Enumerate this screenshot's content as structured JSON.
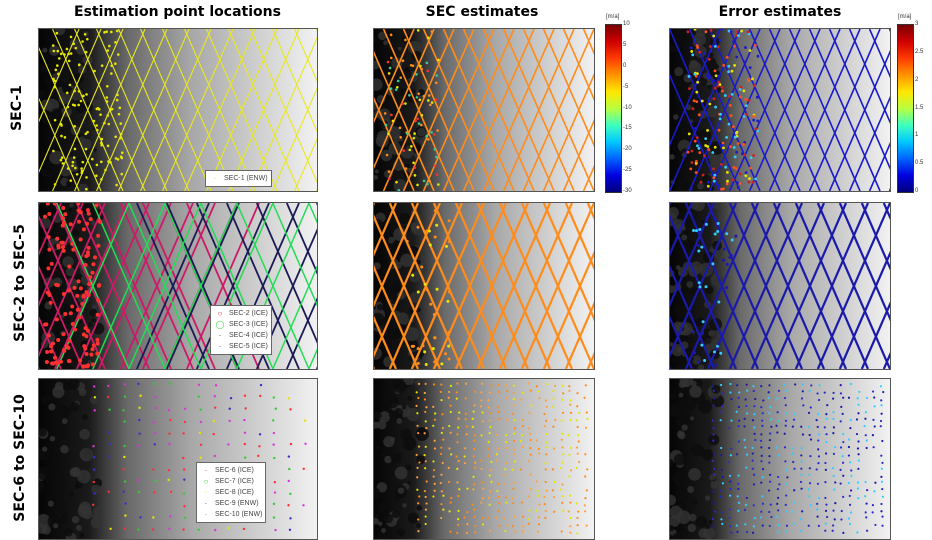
{
  "columns": [
    "Estimation point locations",
    "SEC estimates",
    "Error estimates"
  ],
  "rows": [
    "SEC-1",
    "SEC-2 to SEC-5",
    "SEC-6 to SEC-10"
  ],
  "legends": {
    "row1": [
      {
        "label": "SEC-1 (ENW)",
        "marker": "·",
        "color": "#e6e600"
      }
    ],
    "row2": [
      {
        "label": "SEC-2 (ICE)",
        "marker": "○",
        "color": "#ff3030"
      },
      {
        "label": "SEC-3 (ICE)",
        "marker": "◯",
        "color": "#33dd33"
      },
      {
        "label": "SEC-4 (ICE)",
        "marker": "·",
        "color": "#223355"
      },
      {
        "label": "SEC-5 (ICE)",
        "marker": "·",
        "color": "#3333cc"
      }
    ],
    "row3": [
      {
        "label": "SEC-6 (ICE)",
        "marker": "·",
        "color": "#ff3030"
      },
      {
        "label": "SEC-7 (ICE)",
        "marker": "○",
        "color": "#33cc33"
      },
      {
        "label": "SEC-8 (ICE)",
        "marker": "·",
        "color": "#e6e600"
      },
      {
        "label": "SEC-9 (ENW)",
        "marker": "·",
        "color": "#3333cc"
      },
      {
        "label": "SEC-10 (ENW)",
        "marker": "·",
        "color": "#dd33dd"
      }
    ]
  },
  "colorbars": {
    "sec": {
      "unit": "[m/a]",
      "ticks": [
        "10",
        "5",
        "0",
        "-5",
        "-10",
        "-15",
        "-20",
        "-25",
        "-30"
      ]
    },
    "error": {
      "unit": "[m/a]",
      "ticks": [
        "3",
        "2.5",
        "2",
        "1.5",
        "1",
        "0.5",
        "0"
      ]
    }
  },
  "chart_data": {
    "type": "scatter",
    "title": "",
    "panels_grid": "3 rows x 3 columns",
    "column_titles": [
      "Estimation point locations",
      "SEC estimates",
      "Error estimates"
    ],
    "row_labels": [
      "SEC-1",
      "SEC-2 to SEC-5",
      "SEC-6 to SEC-10"
    ],
    "sec_colorbar": {
      "unit": "[m/a]",
      "range": [
        -30,
        10
      ],
      "ticks": [
        10,
        5,
        0,
        -5,
        -10,
        -15,
        -20,
        -25,
        -30
      ]
    },
    "error_colorbar": {
      "unit": "[m/a]",
      "range": [
        0,
        3
      ],
      "ticks": [
        3,
        2.5,
        2,
        1.5,
        1,
        0.5,
        0
      ]
    },
    "series": [
      {
        "name": "SEC-1 (ENW)",
        "color": "#e6e600",
        "row": 1
      },
      {
        "name": "SEC-2 (ICE)",
        "color": "#ff3030",
        "row": 2
      },
      {
        "name": "SEC-3 (ICE)",
        "color": "#33dd33",
        "row": 2
      },
      {
        "name": "SEC-4 (ICE)",
        "color": "#223355",
        "row": 2
      },
      {
        "name": "SEC-5 (ICE)",
        "color": "#3333cc",
        "row": 2
      },
      {
        "name": "SEC-6 (ICE)",
        "color": "#ff3030",
        "row": 3
      },
      {
        "name": "SEC-7 (ICE)",
        "color": "#33cc33",
        "row": 3
      },
      {
        "name": "SEC-8 (ICE)",
        "color": "#e6e600",
        "row": 3
      },
      {
        "name": "SEC-9 (ENW)",
        "color": "#3333cc",
        "row": 3
      },
      {
        "name": "SEC-10 (ENW)",
        "color": "#dd33dd",
        "row": 3
      }
    ]
  }
}
